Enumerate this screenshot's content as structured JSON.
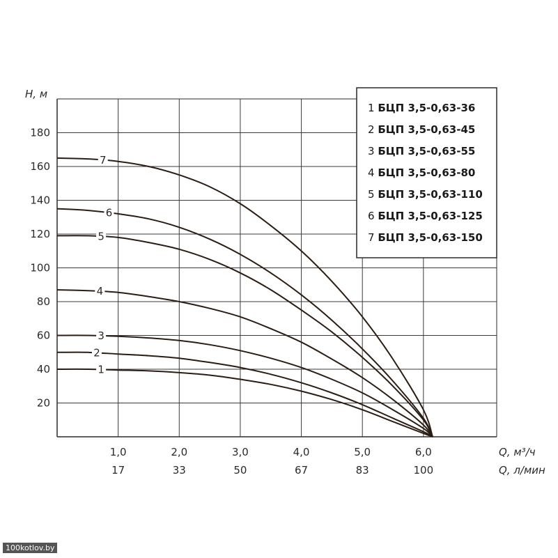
{
  "watermark": "100kotlov.by",
  "chart_data": {
    "type": "line",
    "title": "",
    "ylabel": "H, м",
    "xlabel": "Q, м³/ч",
    "xlabel_secondary": "Q, л/мин",
    "xlim": [
      0,
      7.2
    ],
    "ylim": [
      0,
      200
    ],
    "grid": true,
    "x_ticks": [
      {
        "value": 1.0,
        "label": "1,0",
        "secondary": "17"
      },
      {
        "value": 2.0,
        "label": "2,0",
        "secondary": "33"
      },
      {
        "value": 3.0,
        "label": "3,0",
        "secondary": "50"
      },
      {
        "value": 4.0,
        "label": "4,0",
        "secondary": "67"
      },
      {
        "value": 5.0,
        "label": "5,0",
        "secondary": "83"
      },
      {
        "value": 6.0,
        "label": "6,0",
        "secondary": "100"
      }
    ],
    "y_ticks": [
      {
        "value": 20,
        "label": "20"
      },
      {
        "value": 40,
        "label": "40"
      },
      {
        "value": 60,
        "label": "60"
      },
      {
        "value": 80,
        "label": "80"
      },
      {
        "value": 100,
        "label": "100"
      },
      {
        "value": 120,
        "label": "120"
      },
      {
        "value": 140,
        "label": "140"
      },
      {
        "value": 160,
        "label": "160"
      },
      {
        "value": 180,
        "label": "180"
      }
    ],
    "legend_position": "top-right",
    "series": [
      {
        "id": "1",
        "name": "БЦП 3,5-0,63-36",
        "label": "1",
        "label_x": 0.72,
        "x": [
          0,
          0.5,
          1.0,
          1.5,
          2.0,
          2.5,
          3.0,
          3.5,
          4.0,
          4.5,
          5.0,
          5.5,
          6.0,
          6.15
        ],
        "y": [
          40,
          40,
          39.5,
          39,
          38,
          36.5,
          34,
          31,
          27,
          22,
          16,
          9,
          2,
          0
        ]
      },
      {
        "id": "2",
        "name": "БЦП 3,5-0,63-45",
        "label": "2",
        "label_x": 0.65,
        "x": [
          0,
          0.5,
          1.0,
          1.5,
          2.0,
          2.5,
          3.0,
          3.5,
          4.0,
          4.5,
          5.0,
          5.5,
          6.0,
          6.15
        ],
        "y": [
          50,
          50,
          49,
          48,
          46.5,
          44,
          41,
          37,
          32,
          26,
          19,
          11,
          3,
          0
        ]
      },
      {
        "id": "3",
        "name": "БЦП 3,5-0,63-55",
        "label": "3",
        "label_x": 0.72,
        "x": [
          0,
          0.5,
          1.0,
          1.5,
          2.0,
          2.5,
          3.0,
          3.5,
          4.0,
          4.5,
          5.0,
          5.5,
          6.0,
          6.15
        ],
        "y": [
          60,
          60,
          59.5,
          58.5,
          57,
          54.5,
          51,
          46.5,
          41,
          34,
          26,
          16,
          5,
          0
        ]
      },
      {
        "id": "4",
        "name": "БЦП 3,5-0,63-80",
        "label": "4",
        "label_x": 0.7,
        "x": [
          0,
          0.5,
          1.0,
          1.5,
          2.0,
          2.5,
          3.0,
          3.5,
          4.0,
          4.5,
          5.0,
          5.5,
          6.0,
          6.15
        ],
        "y": [
          87,
          86.5,
          85.5,
          83,
          80,
          76,
          71,
          64,
          56,
          46,
          35,
          22,
          7,
          0
        ]
      },
      {
        "id": "5",
        "name": "БЦП 3,5-0,63-110",
        "label": "5",
        "label_x": 0.72,
        "x": [
          0,
          0.5,
          1.0,
          1.5,
          2.0,
          2.5,
          3.0,
          3.5,
          4.0,
          4.5,
          5.0,
          5.5,
          6.0,
          6.15
        ],
        "y": [
          119,
          119,
          118,
          115,
          111,
          105,
          97,
          87,
          75,
          62,
          47,
          30,
          10,
          0
        ]
      },
      {
        "id": "6",
        "name": "БЦП 3,5-0,63-125",
        "label": "6",
        "label_x": 0.85,
        "x": [
          0,
          0.5,
          1.0,
          1.5,
          2.0,
          2.5,
          3.0,
          3.5,
          4.0,
          4.5,
          5.0,
          5.5,
          6.0,
          6.15
        ],
        "y": [
          135,
          134,
          132,
          129,
          124,
          117,
          108,
          97,
          84,
          69,
          52,
          33,
          11,
          0
        ]
      },
      {
        "id": "7",
        "name": "БЦП 3,5-0,63-150",
        "label": "7",
        "label_x": 0.75,
        "x": [
          0,
          0.5,
          1.0,
          1.5,
          2.0,
          2.5,
          3.0,
          3.5,
          4.0,
          4.5,
          5.0,
          5.5,
          6.0,
          6.15
        ],
        "y": [
          165,
          164.5,
          163,
          160,
          155,
          148,
          138,
          125,
          110,
          92,
          71,
          46,
          16,
          0
        ]
      }
    ]
  }
}
